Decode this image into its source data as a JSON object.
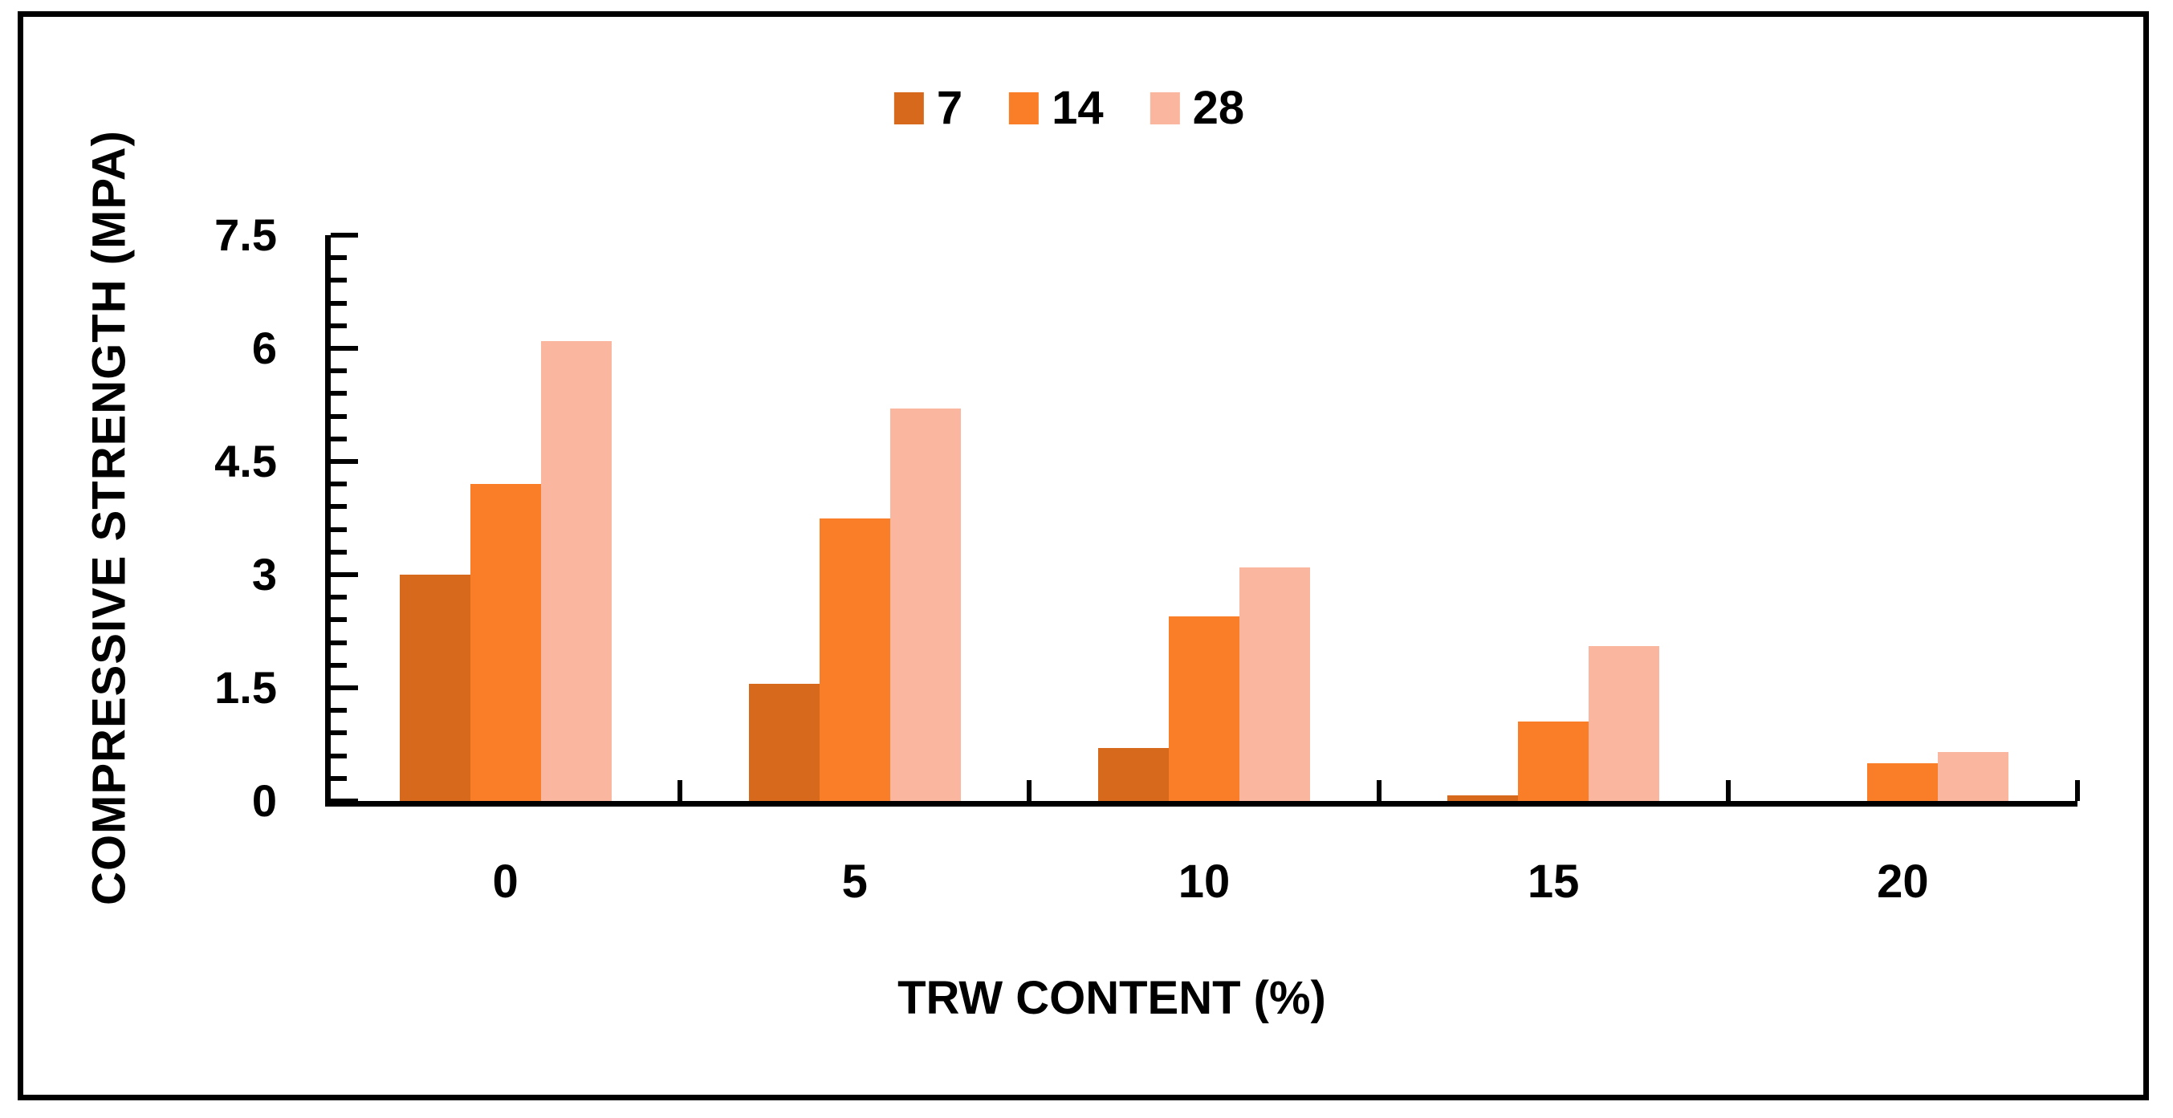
{
  "chart_data": {
    "type": "bar",
    "title": "",
    "xlabel": "TRW CONTENT (%)",
    "ylabel": "COMPRESSIVE STRENGTH (MPA)",
    "categories": [
      "0",
      "5",
      "10",
      "15",
      "20"
    ],
    "series": [
      {
        "name": "7",
        "color": "#d6691c",
        "values": [
          3.0,
          1.55,
          0.7,
          0.07,
          0
        ]
      },
      {
        "name": "14",
        "color": "#fa7e28",
        "values": [
          4.2,
          3.75,
          2.45,
          1.05,
          0.5
        ]
      },
      {
        "name": "28",
        "color": "#fbb69f",
        "values": [
          6.1,
          5.2,
          3.1,
          2.05,
          0.65
        ]
      }
    ],
    "ylim": [
      0,
      7.5
    ],
    "ytick_labels": [
      "0",
      "1.5",
      "3",
      "4.5",
      "6",
      "7.5"
    ],
    "ytick_major_step": 1.5,
    "ytick_minor_step": 0.3,
    "legend_position": "top-center",
    "legend_entries": [
      "7",
      "14",
      "28"
    ],
    "grid": false,
    "axis_color": "#000000",
    "frame_color": "#000000",
    "background_color": "#ffffff"
  }
}
